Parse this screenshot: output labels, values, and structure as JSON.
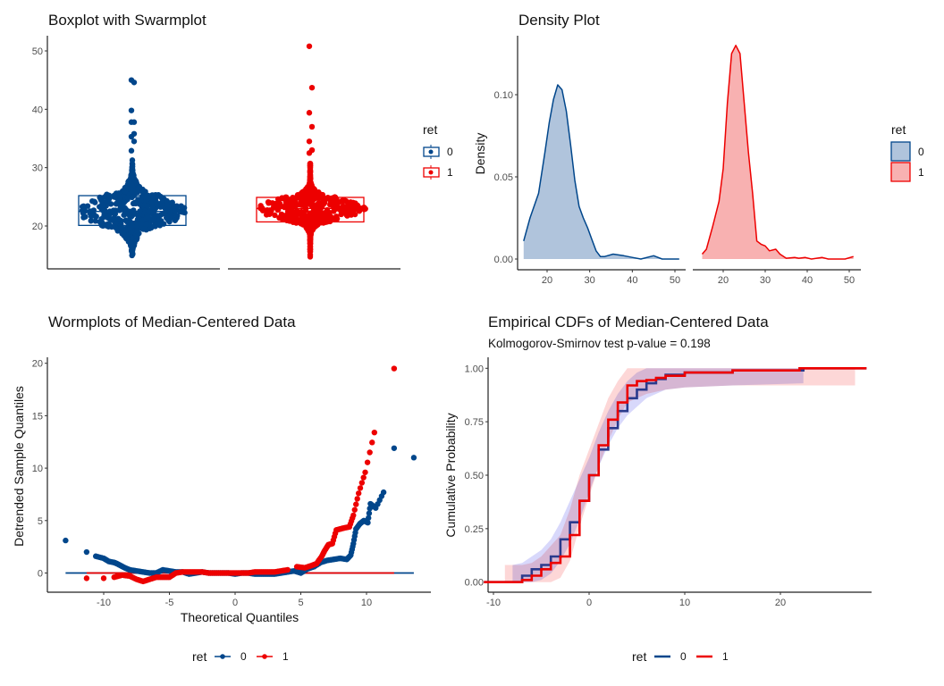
{
  "colors": {
    "group0": "#00468B",
    "group1": "#ED0000",
    "group0_fill": "#B0C4DC",
    "group1_fill": "#F8B1B1",
    "band0": "#C8C8FA",
    "band1": "#FDD0D0",
    "band_overlap": "#D8B8DE"
  },
  "chart_data": [
    {
      "type": "boxplot-swarm",
      "title": "Boxplot with Swarmplot",
      "ylim": [
        13,
        52
      ],
      "yticks": [
        20,
        30,
        40,
        50
      ],
      "legend": {
        "title": "ret",
        "entries": [
          "0",
          "1"
        ],
        "placement": "right"
      },
      "groups": [
        {
          "name": "0",
          "q1": 20.1,
          "median": 22.5,
          "q3": 25.2,
          "min_value": 14.5,
          "outliers_high": [
            32.9,
            34.5,
            35.3,
            35.8,
            37.8,
            37.8,
            39.8,
            44.6,
            45.0
          ]
        },
        {
          "name": "1",
          "q1": 20.7,
          "median": 23.0,
          "q3": 24.9,
          "min_value": 14.5,
          "outliers_high": [
            32.5,
            33.0,
            34.5,
            37.0,
            39.4,
            43.7,
            50.8
          ]
        }
      ]
    },
    {
      "type": "area",
      "title": "Density Plot",
      "ylabel": "Density",
      "xticks": [
        20,
        30,
        40,
        50
      ],
      "yticks": [
        "0.00",
        "0.05",
        "0.10"
      ],
      "ylim": [
        -0.006,
        0.138
      ],
      "legend": {
        "title": "ret",
        "entries": [
          "0",
          "1"
        ],
        "placement": "right"
      },
      "series": [
        {
          "name": "0",
          "x": [
            14.5,
            16,
            18,
            19.5,
            20.5,
            21.5,
            22.5,
            23.5,
            24.5,
            25.5,
            26.5,
            27.5,
            28.5,
            29.5,
            30.5,
            31.5,
            32.5,
            33.5,
            35.5,
            38,
            40,
            42,
            45,
            47,
            51
          ],
          "y": [
            0.011,
            0.025,
            0.04,
            0.065,
            0.083,
            0.097,
            0.106,
            0.103,
            0.09,
            0.07,
            0.048,
            0.032,
            0.025,
            0.019,
            0.012,
            0.005,
            0.0015,
            0.0015,
            0.003,
            0.002,
            0.001,
            0,
            0.002,
            0,
            0
          ]
        },
        {
          "name": "1",
          "x": [
            15,
            16,
            17.5,
            19,
            20,
            21,
            22,
            23,
            24,
            25,
            26,
            27,
            28,
            29,
            30,
            31,
            32.5,
            33.5,
            35,
            37,
            38,
            39.5,
            41,
            43.5,
            45,
            49,
            51
          ],
          "y": [
            0.003,
            0.006,
            0.02,
            0.035,
            0.055,
            0.095,
            0.125,
            0.13,
            0.125,
            0.095,
            0.065,
            0.04,
            0.011,
            0.009,
            0.008,
            0.005,
            0.006,
            0.003,
            0.0005,
            0.001,
            0.0005,
            0.001,
            0,
            0.001,
            0,
            0,
            0.0015
          ]
        }
      ]
    },
    {
      "type": "scatter",
      "title": "Wormplots of Median-Centered Data",
      "xlabel": "Theoretical Quantiles",
      "ylabel": "Detrended Sample Quantiles",
      "xticks": [
        -10,
        -5,
        0,
        5,
        10
      ],
      "yticks": [
        0,
        5,
        10,
        15,
        20
      ],
      "xlim": [
        -14.3,
        16.5
      ],
      "ylim": [
        -1.9,
        20.5
      ],
      "legend": {
        "title": "ret",
        "entries": [
          "0",
          "1"
        ],
        "placement": "bottom"
      },
      "series": [
        {
          "name": "0",
          "line_x": [
            -12.9,
            13.6
          ],
          "x": [
            -12.9,
            -11.3,
            -10.6,
            -10,
            -9.6,
            -9.2,
            -9,
            -8.7,
            -8.4,
            -8,
            -7.5,
            -7,
            -6.5,
            -6,
            -5.5,
            -5,
            -4.5,
            -4,
            -3.5,
            -3,
            -2.5,
            -2,
            -1.5,
            -1,
            -0.5,
            0,
            0.5,
            1,
            1.5,
            2,
            2.5,
            3,
            3.5,
            4,
            4.5,
            5,
            5.5,
            6,
            6.5,
            7,
            7.5,
            8,
            8.5,
            8.8,
            9,
            9.2,
            9.5,
            9.8,
            10.1,
            10.3,
            10.7,
            11.3,
            12.1,
            13.6
          ],
          "y": [
            3.1,
            2.0,
            1.6,
            1.4,
            1.1,
            1.0,
            0.9,
            0.7,
            0.5,
            0.3,
            0.2,
            0.1,
            0,
            0,
            0.3,
            0.2,
            0.1,
            0.1,
            -0.1,
            0,
            0.1,
            0,
            0,
            0,
            0,
            -0.1,
            0,
            0,
            -0.1,
            -0.1,
            -0.1,
            -0.1,
            0,
            0.1,
            0.2,
            0,
            0.4,
            0.6,
            1.0,
            1.2,
            1.3,
            1.4,
            1.3,
            1.7,
            2.8,
            4.2,
            4.7,
            5.0,
            4.8,
            6.6,
            6.2,
            7.7,
            11.9,
            11.0
          ]
        },
        {
          "name": "1",
          "line_x": [
            -11.3,
            12.1
          ],
          "x": [
            -11.3,
            -10,
            -9.2,
            -8.6,
            -8,
            -7.5,
            -7,
            -6.5,
            -6,
            -5.5,
            -5,
            -4.5,
            -4,
            -3.5,
            -3,
            -2.5,
            -2,
            -1.5,
            -1,
            -0.5,
            0,
            0.5,
            1,
            1.5,
            2,
            2.5,
            3,
            3.5,
            4,
            4.7,
            5.3,
            5.8,
            6.2,
            6.6,
            6.8,
            7.1,
            7.4,
            7.7,
            8,
            8.3,
            8.7,
            9,
            9.4,
            9.9,
            10.6,
            12.1
          ],
          "y": [
            -0.5,
            -0.5,
            -0.4,
            -0.2,
            -0.3,
            -0.6,
            -0.8,
            -0.6,
            -0.4,
            -0.4,
            -0.4,
            0,
            0.1,
            0.1,
            0.1,
            0.1,
            0,
            0,
            0,
            0,
            0,
            0,
            0,
            0.1,
            0.1,
            0.1,
            0.1,
            0.2,
            0.3,
            0.6,
            0.5,
            0.7,
            0.9,
            1.6,
            2.1,
            2.7,
            2.8,
            4.1,
            4.2,
            4.3,
            4.4,
            5.5,
            7.6,
            9.6,
            13.4,
            19.5
          ]
        }
      ]
    },
    {
      "type": "line",
      "title": "Empirical CDFs of Median-Centered Data",
      "subtitle": "Kolmogorov-Smirnov test p-value = 0.198",
      "ylabel": "Cumulative Probability",
      "xticks": [
        -10,
        0,
        10,
        20
      ],
      "yticks": [
        "0.00",
        "0.25",
        "0.50",
        "0.75",
        "1.00"
      ],
      "xlim": [
        -10.6,
        29
      ],
      "ylim": [
        -0.05,
        1.05
      ],
      "legend": {
        "title": "ret",
        "entries": [
          "0",
          "1"
        ],
        "placement": "bottom"
      },
      "series": [
        {
          "name": "0",
          "x": [
            -11,
            -8,
            -7,
            -6,
            -5,
            -4,
            -3,
            -2,
            -1,
            0,
            1,
            2,
            3,
            4,
            5,
            6,
            7,
            8,
            10,
            15,
            22.4,
            29
          ],
          "y": [
            0,
            0,
            0.03,
            0.06,
            0.08,
            0.12,
            0.2,
            0.28,
            0.38,
            0.5,
            0.62,
            0.72,
            0.8,
            0.86,
            0.9,
            0.93,
            0.95,
            0.97,
            0.98,
            0.99,
            1,
            1
          ],
          "band_x": [
            -8,
            -7,
            -6,
            -5,
            -4,
            -3,
            -2,
            -1,
            0,
            1,
            2,
            3,
            4,
            5,
            6,
            7,
            8,
            10,
            15,
            22.4
          ],
          "band_lo": [
            0,
            0,
            0,
            0.01,
            0.04,
            0.1,
            0.18,
            0.29,
            0.42,
            0.54,
            0.64,
            0.72,
            0.78,
            0.82,
            0.86,
            0.88,
            0.9,
            0.91,
            0.92,
            0.93
          ],
          "band_hi": [
            0.08,
            0.09,
            0.12,
            0.15,
            0.2,
            0.28,
            0.38,
            0.48,
            0.58,
            0.7,
            0.8,
            0.88,
            0.94,
            0.98,
            1,
            1,
            1,
            1,
            1,
            1
          ]
        },
        {
          "name": "1",
          "x": [
            -11,
            -8.5,
            -7,
            -6,
            -5,
            -4,
            -3,
            -2,
            -1,
            0,
            1,
            2,
            3,
            4,
            5,
            6,
            7,
            8,
            10,
            15,
            22,
            29
          ],
          "y": [
            0,
            0,
            0.01,
            0.03,
            0.06,
            0.09,
            0.12,
            0.22,
            0.38,
            0.5,
            0.64,
            0.76,
            0.84,
            0.92,
            0.94,
            0.945,
            0.955,
            0.965,
            0.98,
            0.99,
            1,
            1
          ],
          "band_x": [
            -8.8,
            -7,
            -6,
            -5,
            -4,
            -3,
            -2,
            -1,
            0,
            1,
            2,
            3,
            4,
            5,
            6,
            7,
            8,
            10,
            15,
            22,
            27.8
          ],
          "band_lo": [
            0,
            0,
            0,
            0,
            0,
            0.02,
            0.1,
            0.26,
            0.4,
            0.54,
            0.66,
            0.76,
            0.84,
            0.86,
            0.88,
            0.89,
            0.9,
            0.91,
            0.92,
            0.92,
            0.92
          ],
          "band_hi": [
            0.08,
            0.08,
            0.09,
            0.12,
            0.17,
            0.22,
            0.34,
            0.5,
            0.62,
            0.74,
            0.86,
            0.94,
            1,
            1,
            1,
            1,
            1,
            1,
            1,
            1,
            1
          ]
        }
      ]
    }
  ]
}
